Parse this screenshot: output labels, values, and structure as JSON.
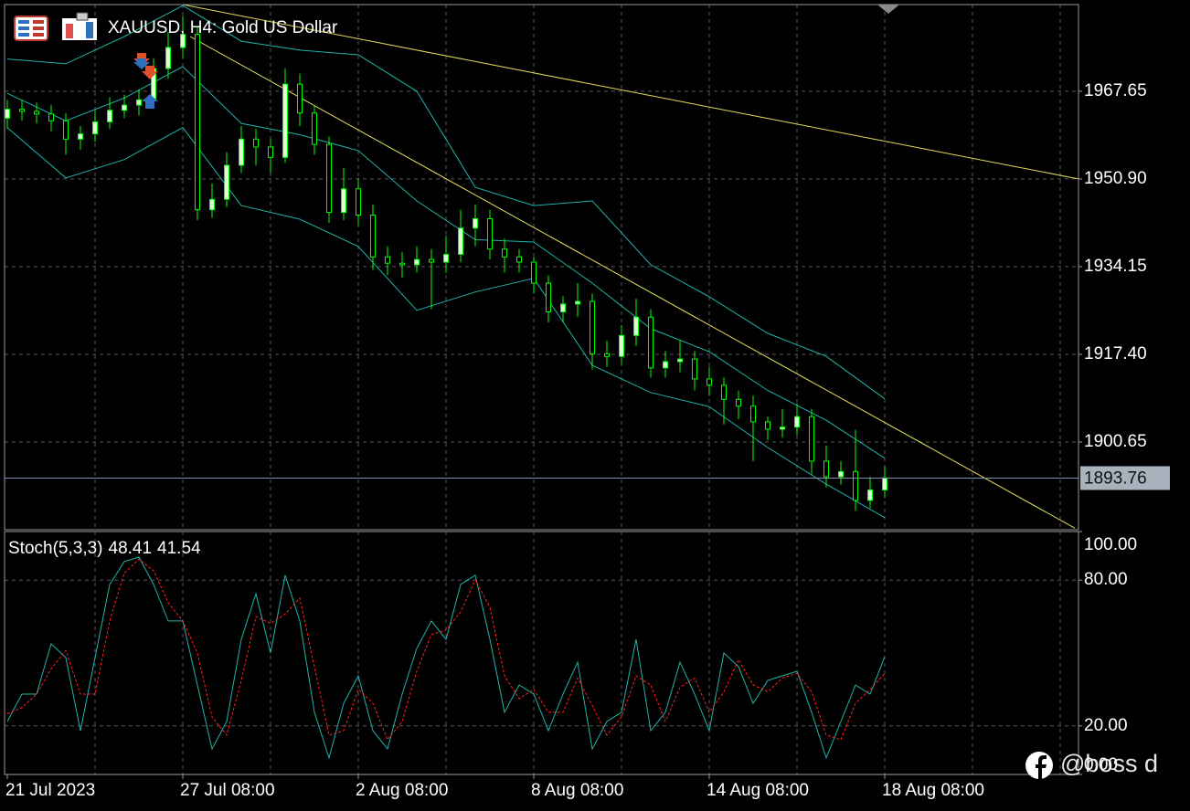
{
  "chart_data": [
    {
      "type": "candlestick",
      "title": "XAUUSD, H4:  Gold US Dollar",
      "x": [
        0,
        2,
        4,
        6,
        8,
        10,
        12,
        14,
        16,
        18,
        20,
        22,
        24,
        26,
        28,
        30,
        32,
        34,
        36,
        38,
        40,
        42,
        44,
        46,
        48,
        50,
        52,
        54,
        56,
        58,
        60,
        62,
        64,
        66,
        68,
        70,
        72,
        74,
        76,
        78,
        80,
        82,
        84,
        86,
        88,
        90,
        92,
        94,
        96,
        98,
        100,
        102,
        104,
        106,
        108,
        110,
        112,
        114,
        116,
        118,
        120
      ],
      "open": [
        1962.5,
        1964.2,
        1963.8,
        1963.3,
        1962,
        1958.5,
        1959.5,
        1961.8,
        1964,
        1965,
        1966,
        1972,
        1976,
        1978.5,
        1945,
        1947,
        1953.5,
        1958.5,
        1957,
        1955,
        1969,
        1963.5,
        1957.5,
        1944.5,
        1949,
        1944,
        1936,
        1934.8,
        1934.5,
        1935.5,
        1935,
        1936.5,
        1941.5,
        1943.3,
        1937.5,
        1936,
        1935,
        1931,
        1925.5,
        1927,
        1927.5,
        1917.5,
        1917,
        1921,
        1924.5,
        1914.8,
        1916,
        1916.5,
        1912.7,
        1911.5,
        1908.8,
        1907.5,
        1904.5,
        1903.1,
        1903.5,
        1905.5,
        1897,
        1894,
        1895,
        1889.5,
        1891.5
      ],
      "high": [
        1966,
        1966,
        1965.5,
        1965,
        1963.5,
        1961,
        1964,
        1966.5,
        1967,
        1968,
        1974,
        1979,
        1982,
        1980,
        1950,
        1956,
        1961,
        1960.5,
        1958.5,
        1972,
        1971,
        1965,
        1959,
        1953,
        1951,
        1946,
        1938,
        1937,
        1938,
        1937.5,
        1940,
        1945,
        1946,
        1945,
        1939.5,
        1937.5,
        1936,
        1932.5,
        1928.5,
        1931,
        1929,
        1920,
        1923,
        1928,
        1926,
        1918,
        1920,
        1918,
        1915,
        1913,
        1910.5,
        1909.5,
        1905.5,
        1907,
        1908,
        1907,
        1900,
        1897,
        1903,
        1894,
        1896
      ],
      "low": [
        1960.5,
        1962,
        1961.5,
        1960,
        1955.5,
        1956.5,
        1958,
        1960.5,
        1962.5,
        1963,
        1964.5,
        1970,
        1974,
        1943,
        1943.5,
        1945.5,
        1952,
        1953.5,
        1952,
        1954,
        1961,
        1955.5,
        1942.5,
        1943,
        1942,
        1933.5,
        1932.5,
        1932,
        1933,
        1926,
        1933,
        1935,
        1938,
        1935.5,
        1933,
        1933,
        1929,
        1923.5,
        1923.5,
        1924.5,
        1914.5,
        1915,
        1915.5,
        1919,
        1913,
        1913,
        1914,
        1910.5,
        1909.5,
        1904,
        1905,
        1897,
        1901,
        1901.5,
        1902,
        1894.5,
        1892,
        1892.5,
        1887.5,
        1888,
        1890
      ],
      "close": [
        1964.2,
        1963.8,
        1963.3,
        1962,
        1958.5,
        1959.5,
        1961.8,
        1964,
        1965,
        1966,
        1972,
        1976,
        1978.5,
        1945,
        1947,
        1953.5,
        1958.5,
        1957,
        1955,
        1969,
        1963.5,
        1957.5,
        1944.5,
        1949,
        1944,
        1936,
        1934.8,
        1934.5,
        1935.5,
        1935,
        1936.5,
        1941.5,
        1943.3,
        1937.5,
        1936,
        1935,
        1931,
        1925.5,
        1927,
        1927.5,
        1917.5,
        1917,
        1921,
        1924.5,
        1914.8,
        1916,
        1916.5,
        1912.7,
        1911.5,
        1908.8,
        1907.5,
        1904.5,
        1903.1,
        1903.5,
        1905.5,
        1897,
        1894,
        1895,
        1889.5,
        1891.5,
        1893.8
      ],
      "wick_color": "#00ff00",
      "bull_color": "#d9ffd9",
      "bear_color": "#000000",
      "bands_x": [
        0,
        8,
        16,
        24,
        32,
        40,
        48,
        56,
        64,
        72,
        80,
        88,
        96,
        104,
        112,
        120
      ],
      "bands": [
        {
          "color": "#20b2aa",
          "values": [
            1973.8,
            1972.9,
            1978.1,
            1984,
            1977.2,
            1975.5,
            1974.6,
            1967.65,
            1949.3,
            1945.8,
            1946.7,
            1934.5,
            1928.4,
            1921.4,
            1917,
            1908.9
          ]
        },
        {
          "color": "#20b2aa",
          "values": [
            1967.25,
            1962,
            1966.35,
            1972.35,
            1961.5,
            1959.35,
            1956.3,
            1946.7,
            1939.3,
            1938.85,
            1931,
            1922.3,
            1917.9,
            1910.5,
            1904.8,
            1897.55
          ]
        },
        {
          "color": "#20b2aa",
          "values": [
            1960.7,
            1951.1,
            1954.6,
            1960.7,
            1945.8,
            1943.2,
            1938,
            1925.8,
            1929.3,
            1931.9,
            1915.3,
            1910.1,
            1907.4,
            1899.6,
            1892.6,
            1886.2
          ]
        }
      ],
      "trendlines": [
        {
          "color": "#e6dc5a",
          "x": [
            24,
            146.5
          ],
          "values": [
            1984.2,
            1950.9
          ]
        },
        {
          "color": "#e6dc5a",
          "x": [
            25,
            146
          ],
          "values": [
            1978.1,
            1884.2
          ]
        }
      ],
      "current_price": 1893.76,
      "current_price_color": "#7f8fb0",
      "xlim": [
        0,
        146.5
      ],
      "ylim": [
        1883.9,
        1984.2
      ],
      "yticks": [
        1967.65,
        {
          "value": 1950.9,
          "label": "1950.90"
        },
        1934.15,
        {
          "value": 1917.4,
          "label": "1917.40"
        },
        1900.65
      ],
      "grid": true
    },
    {
      "type": "line",
      "title": "Stoch(5,3,3)",
      "main_value": 48.41,
      "signal_value": 41.54,
      "x": [
        0,
        2,
        4,
        6,
        8,
        10,
        12,
        14,
        16,
        18,
        20,
        22,
        24,
        26,
        28,
        30,
        32,
        34,
        36,
        38,
        40,
        42,
        44,
        46,
        48,
        50,
        52,
        54,
        56,
        58,
        60,
        62,
        64,
        66,
        68,
        70,
        72,
        74,
        76,
        78,
        80,
        82,
        84,
        86,
        88,
        90,
        92,
        94,
        96,
        98,
        100,
        102,
        104,
        106,
        108,
        110,
        112,
        114,
        116,
        118,
        120
      ],
      "series": [
        {
          "color": "#20b2aa",
          "dash": false,
          "values": [
            21.8,
            33.1,
            33.1,
            53.8,
            48.1,
            18,
            48.1,
            78.2,
            87.6,
            89.5,
            78.2,
            63.2,
            63.2,
            36.8,
            10.5,
            21.8,
            55.6,
            74.4,
            50,
            82,
            63.2,
            25.6,
            6.8,
            29.3,
            40.6,
            18,
            10.5,
            33.1,
            51.9,
            63.2,
            55.6,
            78.2,
            82,
            55.6,
            25.6,
            36.8,
            33.1,
            18,
            33.1,
            46.2,
            10.5,
            21.8,
            25.6,
            55.6,
            18,
            25.6,
            46.2,
            33.1,
            18,
            50,
            44.4,
            29.3,
            38.7,
            40.6,
            42.5,
            25.6,
            6.8,
            21.8,
            36.8,
            33.1,
            48.41
          ]
        },
        {
          "color": "#ff2020",
          "dash": true,
          "values": [
            25,
            27.5,
            33.1,
            43.5,
            51,
            33.1,
            33.1,
            63.2,
            82.9,
            88.6,
            83.9,
            70.7,
            63.2,
            50,
            23.7,
            16.2,
            38.7,
            65,
            62.2,
            66,
            72.6,
            44.4,
            16.2,
            18.1,
            35,
            29.3,
            14.3,
            21.8,
            42.5,
            57.6,
            59.4,
            66.9,
            80.1,
            68.8,
            40.6,
            31.2,
            35,
            25.6,
            25.6,
            39.7,
            28.4,
            16.2,
            23.7,
            40.6,
            36.8,
            21.8,
            35.9,
            39.7,
            25.6,
            34,
            47.2,
            36.9,
            34,
            39.7,
            41.6,
            34.1,
            16.2,
            14.3,
            29.3,
            35,
            41.54
          ]
        }
      ],
      "xlim": [
        0,
        146.5
      ],
      "ylim": [
        0,
        100
      ],
      "yticks": [
        {
          "value": 100,
          "label": "100.00"
        },
        {
          "value": 80,
          "label": "80.00"
        },
        {
          "value": 20,
          "label": "20.00"
        },
        {
          "value": 0,
          "label": "0.00"
        }
      ],
      "xticks": [
        {
          "value": 0,
          "label": "21 Jul 2023"
        },
        {
          "value": 24,
          "label": "27 Jul 08:00"
        },
        {
          "value": 48,
          "label": "2 Aug 08:00"
        },
        {
          "value": 72,
          "label": "8 Aug 08:00"
        },
        {
          "value": 96,
          "label": "14 Aug 08:00"
        },
        {
          "value": 120,
          "label": "18 Aug 08:00"
        }
      ],
      "grid": true,
      "watermark": "@boss d"
    }
  ]
}
